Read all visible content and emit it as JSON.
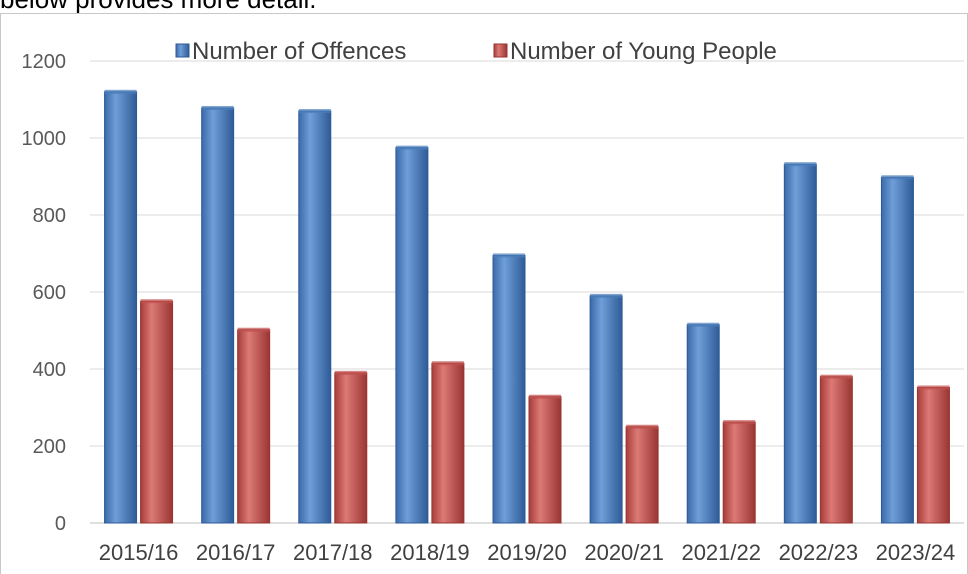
{
  "intro_text": "below provides more detail.",
  "chart_data": {
    "type": "bar",
    "categories": [
      "2015/16",
      "2016/17",
      "2017/18",
      "2018/19",
      "2019/20",
      "2020/21",
      "2021/22",
      "2022/23",
      "2023/24"
    ],
    "series": [
      {
        "name": "Number of Offences",
        "values": [
          1120,
          1078,
          1070,
          975,
          695,
          590,
          515,
          932,
          898
        ],
        "color": "#4a7ebb"
      },
      {
        "name": "Number of Young People",
        "values": [
          576,
          502,
          390,
          415,
          328,
          250,
          262,
          380,
          352
        ],
        "color": "#c0504d"
      }
    ],
    "yticks": [
      0,
      200,
      400,
      600,
      800,
      1000,
      1200
    ],
    "ylim": [
      0,
      1200
    ],
    "grid": true,
    "legend_position": "top-center"
  }
}
